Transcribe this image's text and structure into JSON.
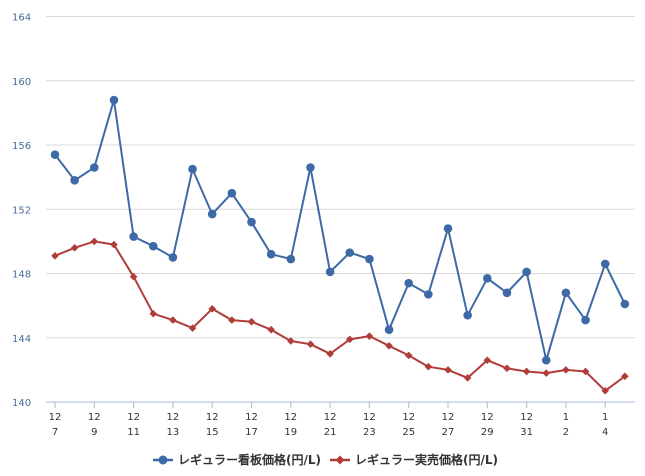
{
  "chart_data": {
    "type": "line",
    "title": "",
    "xlabel": "",
    "ylabel": "",
    "ylim": [
      140,
      164
    ],
    "yticks": [
      140,
      144,
      148,
      152,
      156,
      160,
      164
    ],
    "grid": true,
    "legend_position": "bottom",
    "x": [
      "12/7",
      "12/8",
      "12/9",
      "12/10",
      "12/11",
      "12/12",
      "12/13",
      "12/14",
      "12/15",
      "12/16",
      "12/17",
      "12/18",
      "12/19",
      "12/20",
      "12/21",
      "12/22",
      "12/23",
      "12/24",
      "12/25",
      "12/26",
      "12/27",
      "12/28",
      "12/29",
      "12/30",
      "12/31",
      "1/1",
      "1/2",
      "1/3",
      "1/4",
      "1/5"
    ],
    "xtick_labels": [
      {
        "month": "12",
        "day": "7",
        "index": 0
      },
      {
        "month": "12",
        "day": "9",
        "index": 2
      },
      {
        "month": "12",
        "day": "11",
        "index": 4
      },
      {
        "month": "12",
        "day": "13",
        "index": 6
      },
      {
        "month": "12",
        "day": "15",
        "index": 8
      },
      {
        "month": "12",
        "day": "17",
        "index": 10
      },
      {
        "month": "12",
        "day": "19",
        "index": 12
      },
      {
        "month": "12",
        "day": "21",
        "index": 14
      },
      {
        "month": "12",
        "day": "23",
        "index": 16
      },
      {
        "month": "12",
        "day": "25",
        "index": 18
      },
      {
        "month": "12",
        "day": "27",
        "index": 20
      },
      {
        "month": "12",
        "day": "29",
        "index": 22
      },
      {
        "month": "12",
        "day": "31",
        "index": 24
      },
      {
        "month": "1",
        "day": "2",
        "index": 26
      },
      {
        "month": "1",
        "day": "4",
        "index": 28
      }
    ],
    "series": [
      {
        "name": "レギュラー看板価格(円/L)",
        "color": "#3d6aa6",
        "marker": "circle",
        "values": [
          155.4,
          153.8,
          154.6,
          158.8,
          150.3,
          149.7,
          149.0,
          154.5,
          151.7,
          153.0,
          151.2,
          149.2,
          148.9,
          154.6,
          148.1,
          149.3,
          148.9,
          144.5,
          147.4,
          146.7,
          150.8,
          145.4,
          147.7,
          146.8,
          148.1,
          142.6,
          146.8,
          145.1,
          148.6,
          146.1
        ]
      },
      {
        "name": "レギュラー実売価格(円/L)",
        "color": "#b03d3a",
        "marker": "diamond",
        "values": [
          149.1,
          149.6,
          150.0,
          149.8,
          147.8,
          145.5,
          145.1,
          144.6,
          145.8,
          145.1,
          145.0,
          144.5,
          143.8,
          143.6,
          143.0,
          143.9,
          144.1,
          143.5,
          142.9,
          142.2,
          142.0,
          141.5,
          142.6,
          142.1,
          141.9,
          141.8,
          142.0,
          141.9,
          140.7,
          141.6
        ]
      }
    ]
  },
  "legend": {
    "items": [
      {
        "label": "レギュラー看板価格(円/L)",
        "color": "#3d6aa6"
      },
      {
        "label": "レギュラー実売価格(円/L)",
        "color": "#b03d3a"
      }
    ]
  }
}
